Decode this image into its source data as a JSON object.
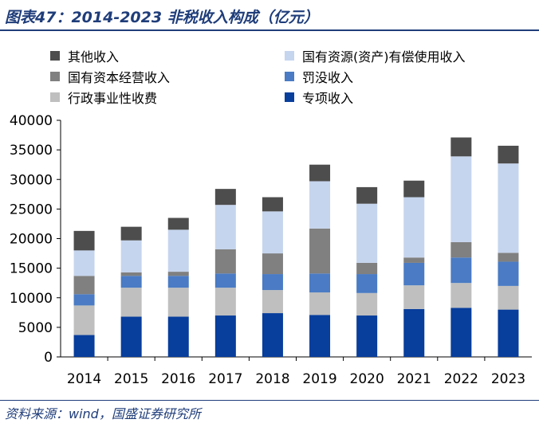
{
  "title": "图表47：2014-2023 非税收入构成（亿元）",
  "source": "资料来源：wind，国盛证券研究所",
  "chart_data": {
    "type": "bar",
    "stacked": true,
    "categories": [
      "2014",
      "2015",
      "2016",
      "2017",
      "2018",
      "2019",
      "2020",
      "2021",
      "2022",
      "2023"
    ],
    "series": [
      {
        "key": "special",
        "name": "专项收入",
        "color": "#083e9c",
        "values": [
          3700,
          6800,
          6800,
          7000,
          7400,
          7100,
          7000,
          8100,
          8300,
          8000
        ]
      },
      {
        "key": "admin",
        "name": "行政事业性收费",
        "color": "#bfbfbf",
        "values": [
          5000,
          4900,
          4900,
          4700,
          3900,
          3800,
          3800,
          4000,
          4200,
          4000
        ]
      },
      {
        "key": "fines",
        "name": "罚没收入",
        "color": "#4a7bc4",
        "values": [
          1900,
          2000,
          2000,
          2400,
          2700,
          3200,
          3200,
          3800,
          4300,
          4100
        ]
      },
      {
        "key": "soe",
        "name": "国有资本经营收入",
        "color": "#808080",
        "values": [
          3100,
          600,
          700,
          4100,
          3500,
          7600,
          1900,
          900,
          2600,
          1500
        ]
      },
      {
        "key": "resources",
        "name": "国有资源(资产)有偿使用收入",
        "color": "#c6d5ee",
        "values": [
          4300,
          5400,
          7100,
          7500,
          7100,
          8000,
          10000,
          10200,
          14500,
          15100
        ]
      },
      {
        "key": "other",
        "name": "其他收入",
        "color": "#4d4d4d",
        "values": [
          3300,
          2300,
          2000,
          2700,
          2400,
          2800,
          2800,
          2800,
          3200,
          3000
        ]
      }
    ],
    "ylim": [
      0,
      40000
    ],
    "yticks": [
      0,
      5000,
      10000,
      15000,
      20000,
      25000,
      30000,
      35000,
      40000
    ],
    "legend_order": [
      "other",
      "resources",
      "soe",
      "fines",
      "admin",
      "special"
    ],
    "legend_position": "top"
  }
}
